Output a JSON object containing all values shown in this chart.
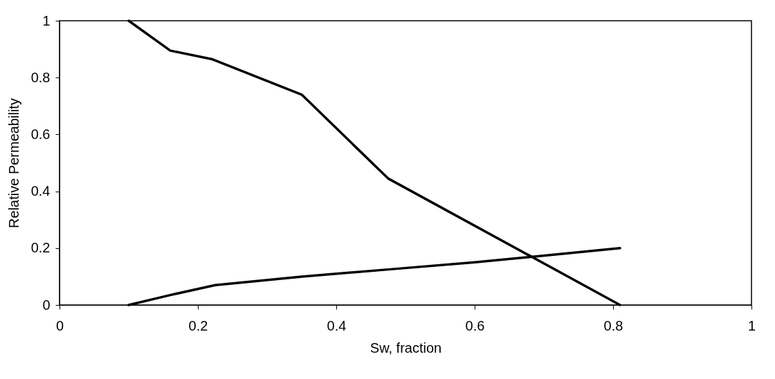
{
  "chart_data": {
    "type": "line",
    "xlabel": "Sw, fraction",
    "ylabel": "Relative Permeability",
    "xlim": [
      0,
      1
    ],
    "ylim": [
      0,
      1
    ],
    "xticks": [
      0,
      0.2,
      0.4,
      0.6,
      0.8,
      1
    ],
    "yticks": [
      0,
      0.2,
      0.4,
      0.6,
      0.8,
      1
    ],
    "marker": "none",
    "line_style": "solid",
    "series": [
      {
        "color": "#000000",
        "x": [
          0.1,
          0.16,
          0.22,
          0.35,
          0.475,
          0.81
        ],
        "values": [
          1,
          0.895,
          0.865,
          0.74,
          0.445,
          0
        ]
      },
      {
        "color": "#000000",
        "x": [
          0.1,
          0.16,
          0.225,
          0.35,
          0.475,
          0.6,
          0.81
        ],
        "values": [
          0,
          0.035,
          0.07,
          0.1,
          0.125,
          0.15,
          0.2
        ]
      }
    ]
  }
}
